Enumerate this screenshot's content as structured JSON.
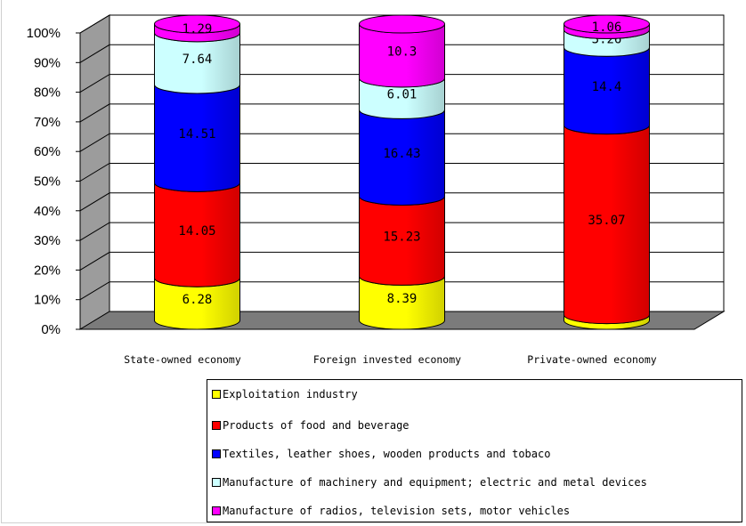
{
  "chart_data": {
    "type": "bar",
    "stacked": true,
    "percent_stacked": true,
    "style": "3d-cylinder",
    "categories": [
      "State-owned economy",
      "Foreign invested economy",
      "Private-owned economy"
    ],
    "series": [
      {
        "name": "Exploitation industry",
        "color": "#ffff00",
        "values": [
          6.28,
          8.39,
          1.05
        ],
        "labels": [
          "6.28",
          "8.39",
          "1.05"
        ]
      },
      {
        "name": "Products of food and beverage",
        "color": "#ff0000",
        "values": [
          14.05,
          15.23,
          35.07
        ],
        "labels": [
          "14.05",
          "15.23",
          "35.07"
        ]
      },
      {
        "name": "Textiles, leather shoes, wooden products and tobaco",
        "color": "#0000ff",
        "values": [
          14.51,
          16.43,
          14.4
        ],
        "labels": [
          "14.51",
          "16.43",
          "14.4"
        ]
      },
      {
        "name": "Manufacture of machinery and equipment; electric and metal devices",
        "color": "#ccffff",
        "values": [
          7.64,
          6.01,
          3.26
        ],
        "labels": [
          "7.64",
          "6.01",
          "3.26"
        ]
      },
      {
        "name": "Manufacture of radios, television sets, motor vehicles",
        "color": "#ff00ff",
        "values": [
          1.29,
          10.3,
          1.06
        ],
        "labels": [
          "1.29",
          "10.3",
          "1.06"
        ]
      }
    ],
    "y_ticks": [
      "0%",
      "10%",
      "20%",
      "30%",
      "40%",
      "50%",
      "60%",
      "70%",
      "80%",
      "90%",
      "100%"
    ],
    "ylim": [
      0,
      100
    ],
    "grid": true,
    "legend_position": "bottom-right"
  }
}
